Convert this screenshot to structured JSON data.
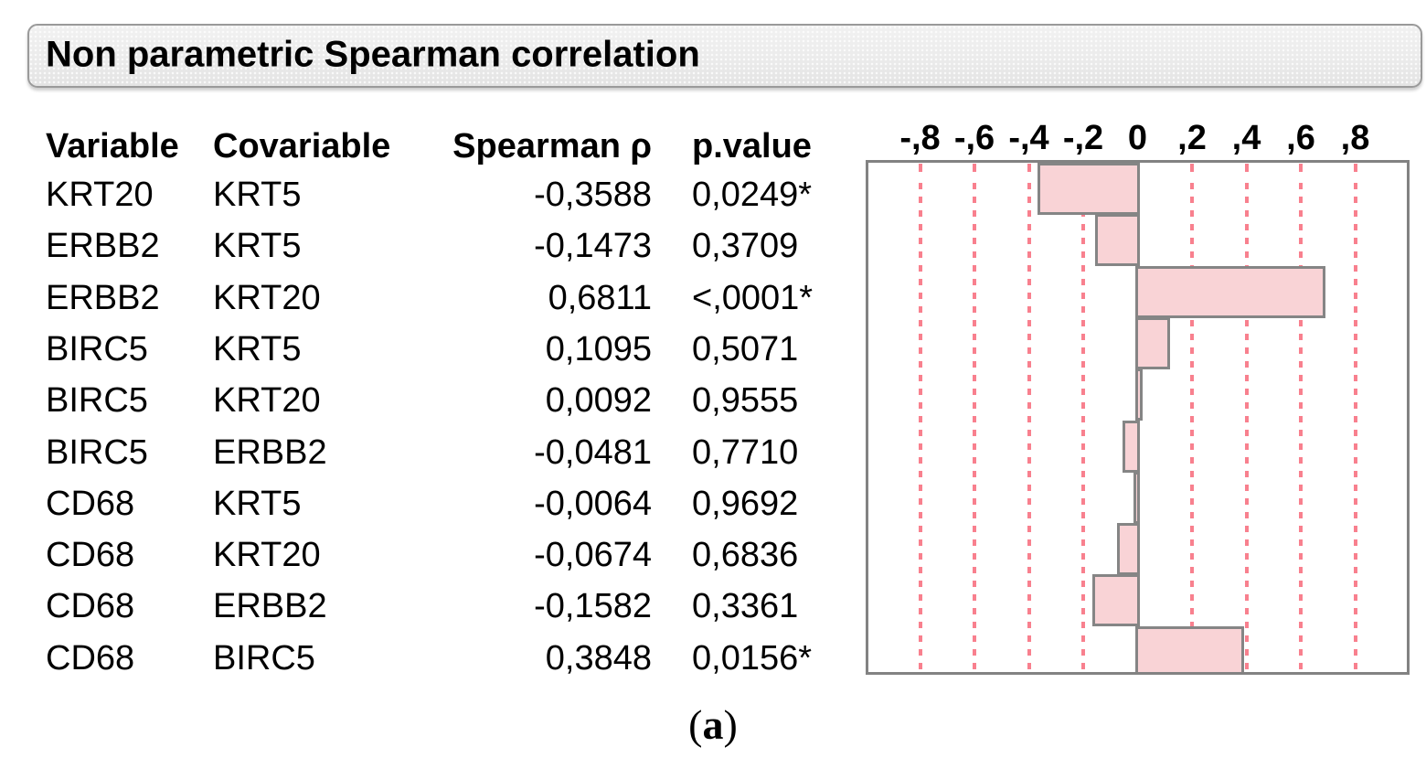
{
  "title": "Non parametric Spearman correlation",
  "table": {
    "headers": [
      "Variable",
      "Covariable",
      "Spearman ρ",
      "p.value"
    ],
    "rows": [
      {
        "variable": "KRT20",
        "covariable": "KRT5",
        "rho": "-0,3588",
        "p_value": "0,0249*"
      },
      {
        "variable": "ERBB2",
        "covariable": "KRT5",
        "rho": "-0,1473",
        "p_value": "0,3709"
      },
      {
        "variable": "ERBB2",
        "covariable": "KRT20",
        "rho": "0,6811",
        "p_value": "<,0001*"
      },
      {
        "variable": "BIRC5",
        "covariable": "KRT5",
        "rho": "0,1095",
        "p_value": "0,5071"
      },
      {
        "variable": "BIRC5",
        "covariable": "KRT20",
        "rho": "0,0092",
        "p_value": "0,9555"
      },
      {
        "variable": "BIRC5",
        "covariable": "ERBB2",
        "rho": "-0,0481",
        "p_value": "0,7710"
      },
      {
        "variable": "CD68",
        "covariable": "KRT5",
        "rho": "-0,0064",
        "p_value": "0,9692"
      },
      {
        "variable": "CD68",
        "covariable": "KRT20",
        "rho": "-0,0674",
        "p_value": "0,6836"
      },
      {
        "variable": "CD68",
        "covariable": "ERBB2",
        "rho": "-0,1582",
        "p_value": "0,3361"
      },
      {
        "variable": "CD68",
        "covariable": "BIRC5",
        "rho": "0,3848",
        "p_value": "0,0156*"
      }
    ]
  },
  "chart_data": {
    "type": "bar",
    "orientation": "horizontal",
    "title": "",
    "xlabel": "Spearman ρ",
    "ylabel": "",
    "categories": [
      "KRT20 vs KRT5",
      "ERBB2 vs KRT5",
      "ERBB2 vs KRT20",
      "BIRC5 vs KRT5",
      "BIRC5 vs KRT20",
      "BIRC5 vs ERBB2",
      "CD68 vs KRT5",
      "CD68 vs KRT20",
      "CD68 vs ERBB2",
      "CD68 vs BIRC5"
    ],
    "values": [
      -0.3588,
      -0.1473,
      0.6811,
      0.1095,
      0.0092,
      -0.0481,
      -0.0064,
      -0.0674,
      -0.1582,
      0.3848
    ],
    "xlim": [
      -1,
      1
    ],
    "tick_labels": [
      "-,8",
      "-,6",
      "-,4",
      "-,2",
      "0",
      ",2",
      ",4",
      ",6",
      ",8"
    ],
    "tick_values": [
      -0.8,
      -0.6,
      -0.4,
      -0.2,
      0,
      0.2,
      0.4,
      0.6,
      0.8
    ],
    "grid": "dashed vertical gridlines at ticks, solid zero line",
    "legend": "none",
    "colors": {
      "bar_fill": "#f9d3d6",
      "bar_border": "#858585",
      "grid_line": "#f8808e",
      "zero_line": "#757575",
      "frame": "#828282"
    }
  },
  "caption": {
    "open": "(",
    "letter": "a",
    "close": ")"
  }
}
